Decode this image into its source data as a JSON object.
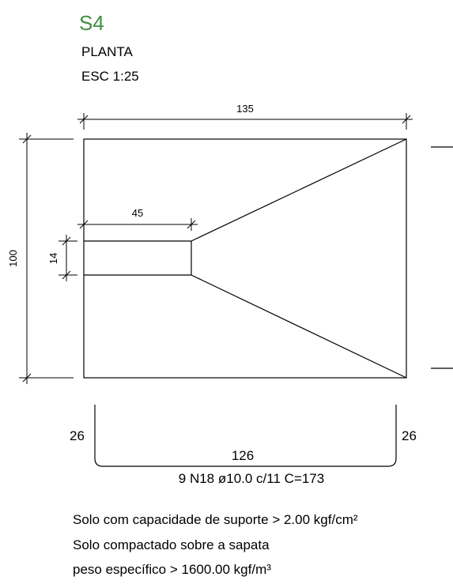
{
  "header": {
    "title": "S4",
    "view": "PLANTA",
    "scale": "ESC 1:25"
  },
  "dimensions": {
    "width": "135",
    "height": "100",
    "column_width": "45",
    "column_depth": "14"
  },
  "rebar": {
    "left_hook": "26",
    "right_hook": "26",
    "straight_length": "126",
    "spec": "9 N18 ø10.0 c/11 C=173"
  },
  "notes": {
    "line1": "Solo com capacidade de suporte > 2.00 kgf/cm²",
    "line2": "Solo compactado sobre a sapata",
    "line3": "peso específico > 1600.00 kgf/m³"
  },
  "colors": {
    "title": "#3f8f3f",
    "lines": "#000000"
  }
}
